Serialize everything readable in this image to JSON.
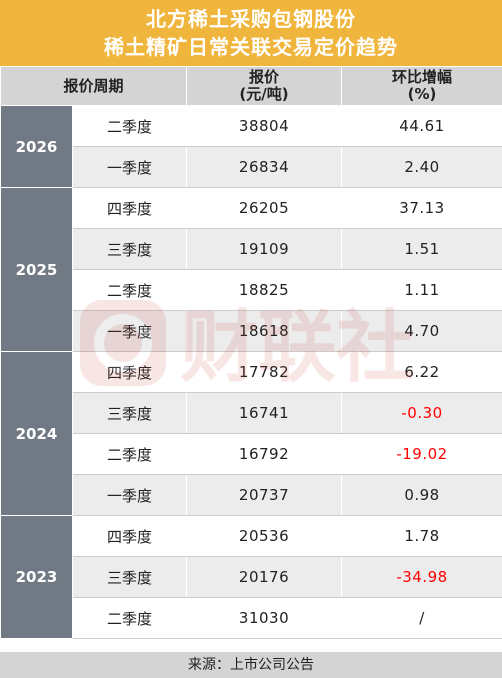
{
  "title": {
    "line1": "北方稀土采购包钢股份",
    "line2": "稀土精矿日常关联交易定价趋势"
  },
  "header": {
    "period": "报价周期",
    "price_line1": "报价",
    "price_line2": "(元/吨)",
    "change_line1": "环比增幅",
    "change_line2": "(%)"
  },
  "groups": [
    {
      "year": "2026",
      "rows": [
        {
          "quarter": "二季度",
          "price": "38804",
          "change": "44.61",
          "negative": false
        },
        {
          "quarter": "一季度",
          "price": "26834",
          "change": "2.40",
          "negative": false
        }
      ]
    },
    {
      "year": "2025",
      "rows": [
        {
          "quarter": "四季度",
          "price": "26205",
          "change": "37.13",
          "negative": false
        },
        {
          "quarter": "三季度",
          "price": "19109",
          "change": "1.51",
          "negative": false
        },
        {
          "quarter": "二季度",
          "price": "18825",
          "change": "1.11",
          "negative": false
        },
        {
          "quarter": "一季度",
          "price": "18618",
          "change": "4.70",
          "negative": false
        }
      ]
    },
    {
      "year": "2024",
      "rows": [
        {
          "quarter": "四季度",
          "price": "17782",
          "change": "6.22",
          "negative": false
        },
        {
          "quarter": "三季度",
          "price": "16741",
          "change": "-0.30",
          "negative": true
        },
        {
          "quarter": "二季度",
          "price": "16792",
          "change": "-19.02",
          "negative": true
        },
        {
          "quarter": "一季度",
          "price": "20737",
          "change": "0.98",
          "negative": false
        }
      ]
    },
    {
      "year": "2023",
      "rows": [
        {
          "quarter": "四季度",
          "price": "20536",
          "change": "1.78",
          "negative": false
        },
        {
          "quarter": "三季度",
          "price": "20176",
          "change": "-34.98",
          "negative": true
        },
        {
          "quarter": "二季度",
          "price": "31030",
          "change": "/",
          "negative": false
        }
      ]
    }
  ],
  "footer": "来源：上市公司公告",
  "watermark": "财联社",
  "colors": {
    "title_bg": "#f0b53d",
    "header_bg": "#d4d4d4",
    "year_bg": "#717a84",
    "negative": "#ff0000"
  }
}
